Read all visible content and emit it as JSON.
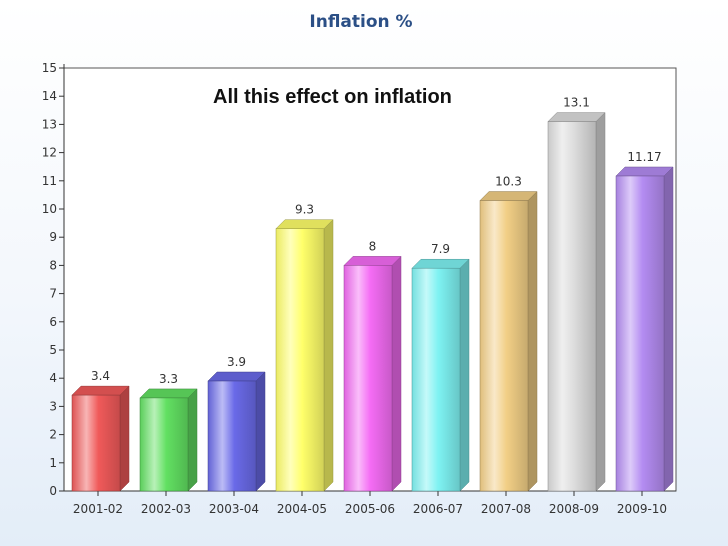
{
  "chart_data": {
    "type": "bar",
    "title": "Inflation %",
    "annotation": "All this effect on inflation",
    "categories": [
      "2001-02",
      "2002-03",
      "2003-04",
      "2004-05",
      "2005-06",
      "2006-07",
      "2007-08",
      "2008-09",
      "2009-10"
    ],
    "values": [
      3.4,
      3.3,
      3.9,
      9.3,
      8,
      7.9,
      10.3,
      13.1,
      11.17
    ],
    "value_labels": [
      "3.4",
      "3.3",
      "3.9",
      "9.3",
      "8",
      "7.9",
      "10.3",
      "13.1",
      "11.17"
    ],
    "colors": [
      "#f05a5a",
      "#62e062",
      "#6a6ae8",
      "#ffff6a",
      "#f46cf4",
      "#7ef2f2",
      "#f2cf86",
      "#dcdcdc",
      "#b48cf2"
    ],
    "y_ticks": [
      "0",
      "1",
      "2",
      "3",
      "4",
      "5",
      "6",
      "7",
      "8",
      "9",
      "10",
      "11",
      "12",
      "13",
      "14",
      "15"
    ],
    "ylim": [
      0,
      15
    ],
    "grid": false,
    "legend": "none",
    "xlabel": "",
    "ylabel": ""
  }
}
